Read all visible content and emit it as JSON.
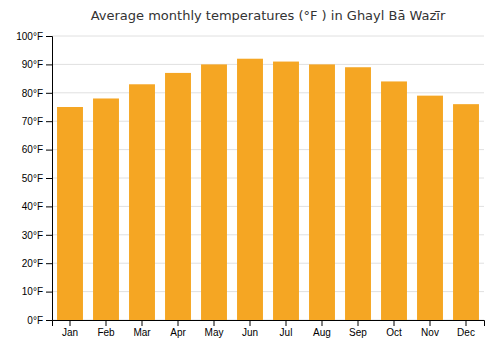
{
  "chart_data": {
    "type": "bar",
    "title": "Average monthly temperatures (°F ) in Ghayl Bā  Wazī̄r",
    "categories": [
      "Jan",
      "Feb",
      "Mar",
      "Apr",
      "May",
      "Jun",
      "Jul",
      "Aug",
      "Sep",
      "Oct",
      "Nov",
      "Dec"
    ],
    "values": [
      75,
      78,
      83,
      87,
      90,
      92,
      91,
      90,
      89,
      84,
      79,
      76
    ],
    "color": "#F5A623",
    "ylim": [
      0,
      100
    ],
    "yticks": [
      {
        "value": 0,
        "label": "0°F"
      },
      {
        "value": 10,
        "label": "10°F"
      },
      {
        "value": 20,
        "label": "20°F"
      },
      {
        "value": 30,
        "label": "30°F"
      },
      {
        "value": 40,
        "label": "40°F"
      },
      {
        "value": 50,
        "label": "50°F"
      },
      {
        "value": 60,
        "label": "60°F"
      },
      {
        "value": 70,
        "label": "70°F"
      },
      {
        "value": 80,
        "label": "80°F"
      },
      {
        "value": 90,
        "label": "90°F"
      },
      {
        "value": 100,
        "label": "100°F"
      }
    ],
    "grid": true
  }
}
